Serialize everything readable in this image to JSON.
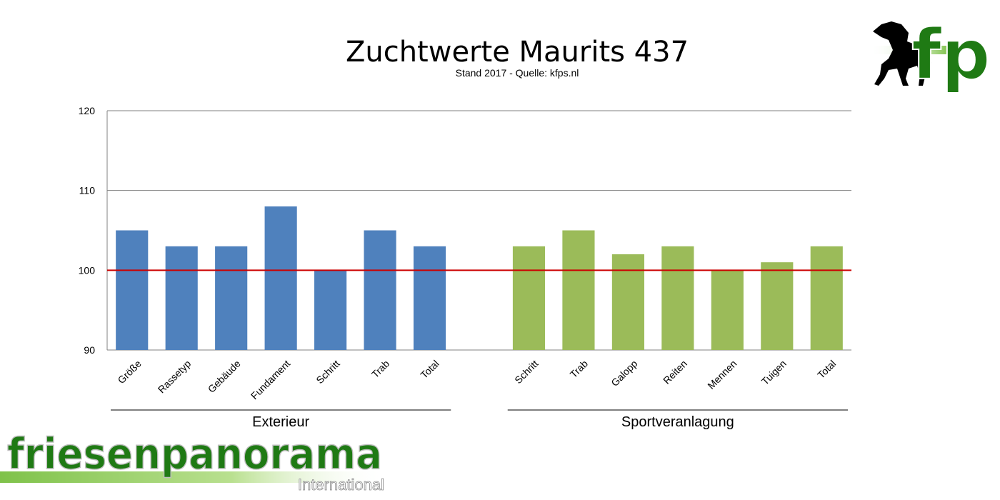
{
  "chart_data": {
    "type": "bar",
    "title": "Zuchtwerte Maurits 437",
    "subtitle": "Stand 2017 - Quelle: kfps.nl",
    "ylim": [
      90,
      120
    ],
    "yticks": [
      90,
      100,
      110,
      120
    ],
    "grid": true,
    "reference_line": {
      "value": 100,
      "color": "#cc0000"
    },
    "groups": [
      {
        "label": "Exterieur",
        "color": "#4f81bd",
        "categories": [
          "Größe",
          "Rassetyp",
          "Gebäude",
          "Fundament",
          "Schritt",
          "Trab",
          "Total"
        ],
        "values": [
          105,
          103,
          103,
          108,
          100,
          105,
          103
        ]
      },
      {
        "label": "Sportveranlagung",
        "color": "#9bbb59",
        "categories": [
          "Schritt",
          "Trab",
          "Galopp",
          "Reiten",
          "Mennen",
          "Tuigen",
          "Total"
        ],
        "values": [
          103,
          105,
          102,
          103,
          100,
          101,
          103
        ]
      }
    ]
  },
  "branding": {
    "logo_top": "fp",
    "logo_bottom_main": "friesenpanorama",
    "logo_bottom_sub": "International",
    "icons": [
      "horse-silhouette-icon"
    ]
  }
}
